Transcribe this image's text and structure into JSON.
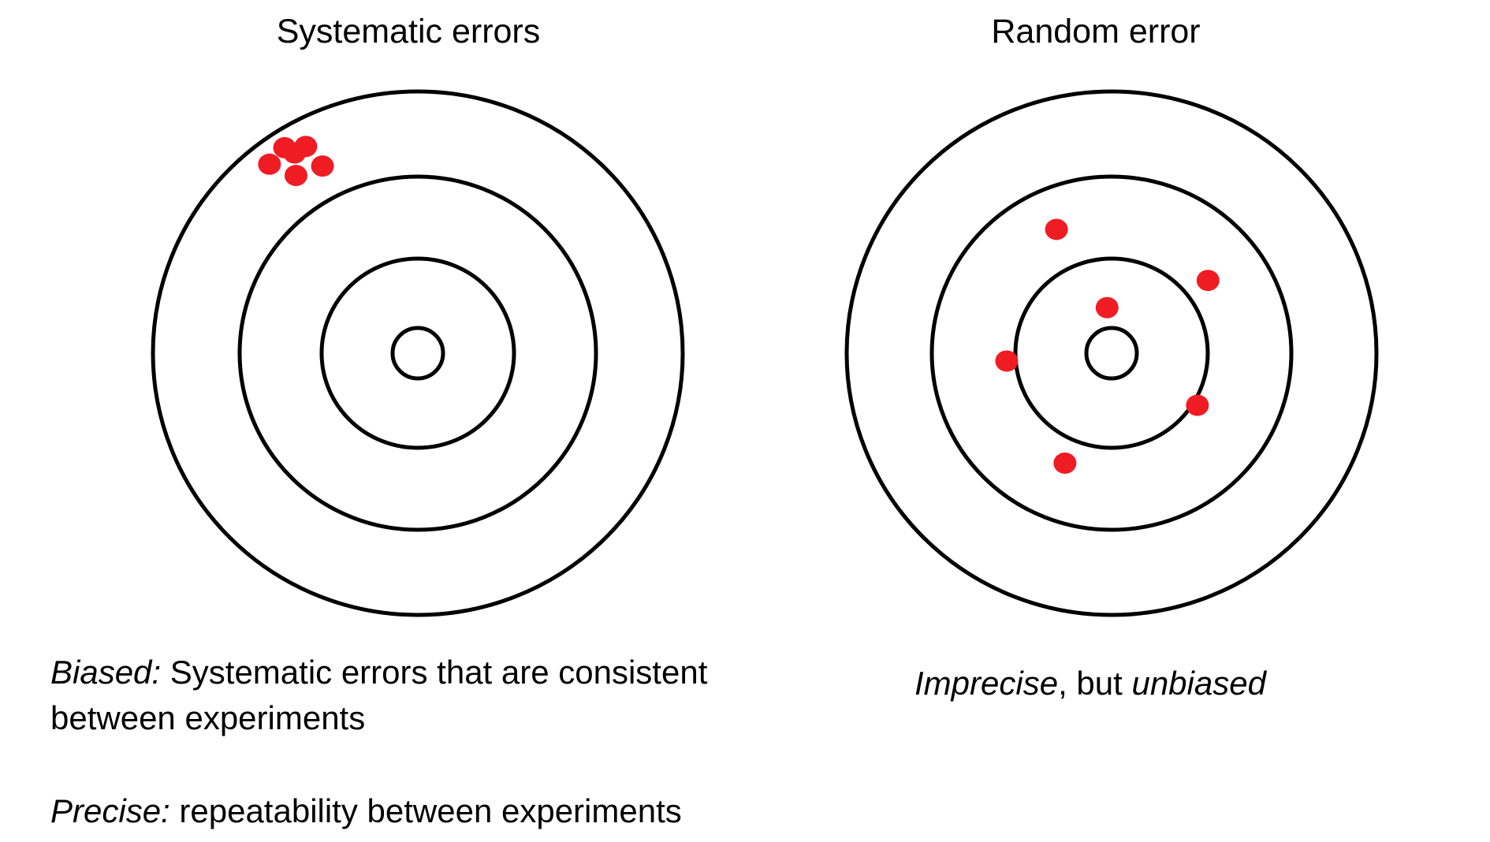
{
  "titles": {
    "left": "Systematic errors",
    "right": "Random error"
  },
  "colors": {
    "ring": "#000000",
    "shot": "#ef1c24",
    "background": "#ffffff"
  },
  "targets": {
    "left": {
      "name": "systematic",
      "shots": [
        {
          "dx": -0.503,
          "dy": -0.785
        },
        {
          "dx": -0.423,
          "dy": -0.79
        },
        {
          "dx": -0.465,
          "dy": -0.765
        },
        {
          "dx": -0.56,
          "dy": -0.722
        },
        {
          "dx": -0.46,
          "dy": -0.679
        },
        {
          "dx": -0.36,
          "dy": -0.715
        }
      ]
    },
    "right": {
      "name": "random",
      "shots": [
        {
          "dx": -0.208,
          "dy": -0.473
        },
        {
          "dx": 0.364,
          "dy": -0.278
        },
        {
          "dx": -0.017,
          "dy": -0.174
        },
        {
          "dx": -0.396,
          "dy": 0.03
        },
        {
          "dx": 0.324,
          "dy": 0.199
        },
        {
          "dx": -0.176,
          "dy": 0.42
        }
      ]
    }
  },
  "captions": {
    "biased": {
      "term": "Biased:",
      "text_line1": " Systematic errors that are consistent",
      "text_line2": "between experiments"
    },
    "precise": {
      "term": "Precise:",
      "text": " repeatability between experiments"
    },
    "imprecise": {
      "term1": "Imprecise",
      "middle": ", but ",
      "term2": "unbiased"
    }
  }
}
